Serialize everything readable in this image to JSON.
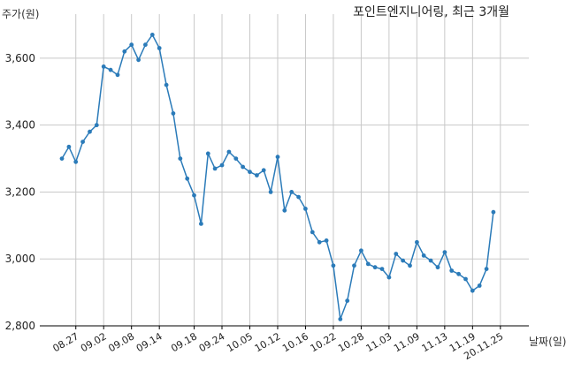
{
  "chart_data": {
    "type": "line",
    "title": "포인트엔지니어링, 최근 3개월",
    "ylabel": "주가(원)",
    "xlabel": "날짜(일)",
    "ylim": [
      2800,
      3700
    ],
    "yticks": [
      2800,
      3000,
      3200,
      3400,
      3600
    ],
    "ytick_labels": [
      "2,800",
      "3,000",
      "3,200",
      "3,400",
      "3,600"
    ],
    "xtick_labels": [
      "08.27",
      "09.02",
      "09.08",
      "09.14",
      "09.18",
      "09.24",
      "10.05",
      "10.12",
      "10.16",
      "10.22",
      "10.28",
      "11.03",
      "11.09",
      "11.13",
      "11.19",
      "20.11.25"
    ],
    "xtick_positions": [
      2,
      6,
      10,
      14,
      19,
      23,
      27,
      31,
      35,
      39,
      43,
      47,
      51,
      55,
      59,
      63
    ],
    "grid": true,
    "line_color": "#2b7bb9",
    "series": [
      {
        "values": [
          3300,
          3335,
          3290,
          3350,
          3380,
          3400,
          3575,
          3565,
          3550,
          3620,
          3640,
          3595,
          3640,
          3670,
          3630,
          3520,
          3435,
          3300,
          3240,
          3190,
          3105,
          3315,
          3270,
          3280,
          3320,
          3300,
          3275,
          3260,
          3250,
          3265,
          3200,
          3305,
          3145,
          3200,
          3185,
          3150,
          3080,
          3050,
          3055,
          2980,
          2820,
          2875,
          2980,
          3025,
          2985,
          2975,
          2970,
          2945,
          3015,
          2995,
          2980,
          3050,
          3010,
          2995,
          2975,
          3020,
          2965,
          2955,
          2940,
          2905,
          2920,
          2970,
          3140
        ]
      }
    ]
  }
}
